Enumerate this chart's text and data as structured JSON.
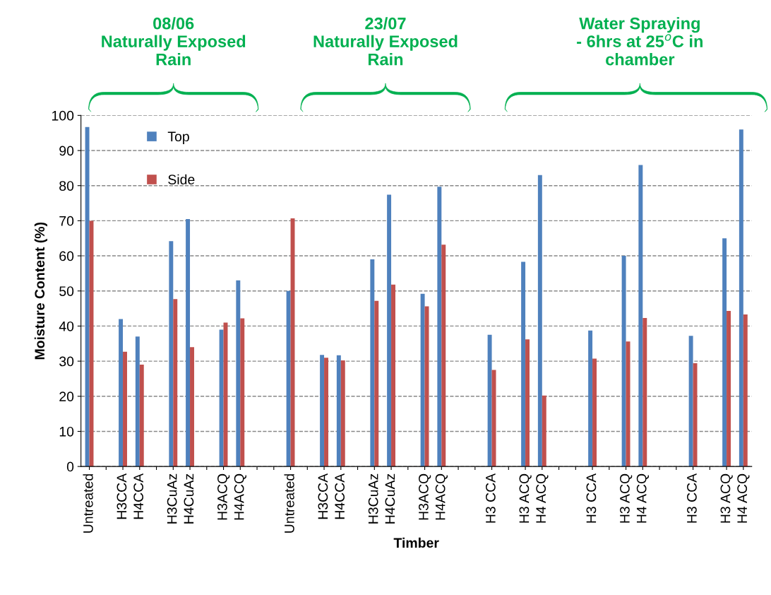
{
  "chart_data": {
    "type": "bar",
    "categories": [
      "Untreated",
      null,
      "H3CCA",
      "H4CCA",
      null,
      "H3CuAz",
      "H4CuAz",
      null,
      "H3ACQ",
      "H4ACQ",
      null,
      null,
      "Untreated",
      null,
      "H3CCA",
      "H4CCA",
      null,
      "H3CuAz",
      "H4CuAz",
      null,
      "H3ACQ",
      "H4ACQ",
      null,
      null,
      "H3 CCA",
      null,
      "H3 ACQ",
      "H4 ACQ",
      null,
      null,
      "H3 CCA",
      null,
      "H3 ACQ",
      "H4 ACQ",
      null,
      null,
      "H3 CCA",
      null,
      "H3 ACQ",
      "H4 ACQ"
    ],
    "series": [
      {
        "name": "Top",
        "color": "#4f81bd",
        "values": [
          96.7,
          null,
          42,
          37,
          null,
          64.2,
          70.5,
          null,
          39,
          53,
          null,
          null,
          50,
          null,
          31.8,
          31.7,
          null,
          59,
          77.4,
          null,
          49.2,
          79.7,
          null,
          null,
          37.5,
          null,
          58.3,
          83,
          null,
          null,
          38.7,
          null,
          60,
          85.9,
          null,
          null,
          37.2,
          null,
          65,
          96
        ]
      },
      {
        "name": "Side",
        "color": "#c0504d",
        "values": [
          70,
          null,
          32.7,
          29,
          null,
          47.7,
          34,
          null,
          41,
          42.2,
          null,
          null,
          70.7,
          null,
          31,
          30.2,
          null,
          47.2,
          51.8,
          null,
          45.6,
          63.2,
          null,
          null,
          27.5,
          null,
          36.2,
          20.2,
          null,
          null,
          30.7,
          null,
          35.6,
          42.3,
          null,
          null,
          29.4,
          null,
          44.3,
          43.3
        ]
      }
    ],
    "xlabel": "Timber",
    "ylabel": "Moisture Content (%)",
    "ylim": [
      0,
      100
    ],
    "yticks": [
      0,
      10,
      20,
      30,
      40,
      50,
      60,
      70,
      80,
      90,
      100
    ],
    "grid": "y",
    "legend": "top left",
    "annotations": [
      "08/06\nNaturally Exposed\nRain",
      "23/07\nNaturally Exposed\nRain",
      "Water Spraying\n- 6hrs at 25$^{o}$C in\nchamber"
    ]
  }
}
